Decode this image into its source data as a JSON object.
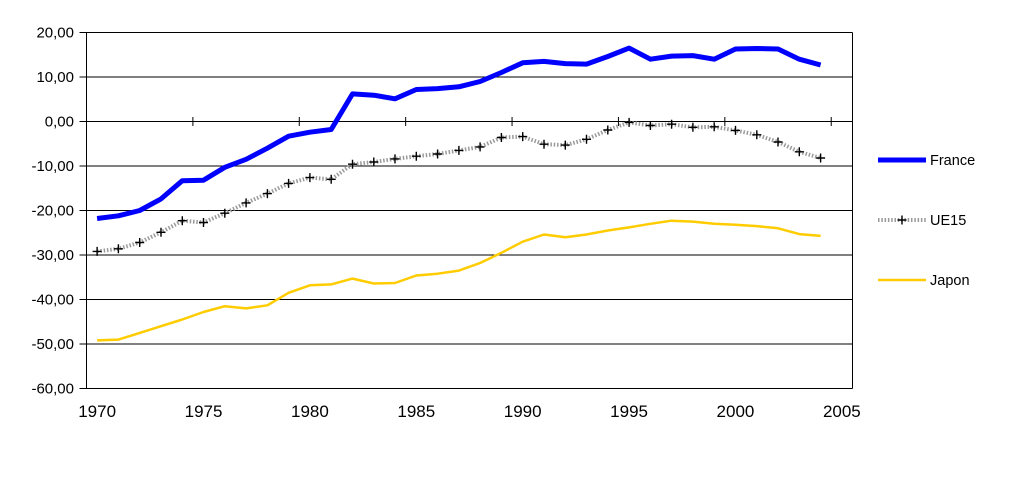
{
  "chart_data": {
    "type": "line",
    "title": "",
    "xlabel": "",
    "ylabel": "",
    "ylim": [
      -60,
      20
    ],
    "grid": "horizontal",
    "legend_position": "right",
    "background": "#FFFFFF",
    "axis_color": "#000000",
    "years": [
      1970,
      1971,
      1972,
      1973,
      1974,
      1975,
      1976,
      1977,
      1978,
      1979,
      1980,
      1981,
      1982,
      1983,
      1984,
      1985,
      1986,
      1987,
      1988,
      1989,
      1990,
      1991,
      1992,
      1993,
      1994,
      1995,
      1996,
      1997,
      1998,
      1999,
      2000,
      2001,
      2002,
      2003,
      2004
    ],
    "x_tick_labels": [
      "1970",
      "1975",
      "1980",
      "1985",
      "1990",
      "1995",
      "2000",
      "2005"
    ],
    "y_tick_values": [
      20,
      10,
      0,
      -10,
      -20,
      -30,
      -40,
      -50,
      -60
    ],
    "y_tick_labels": [
      "20,00",
      "10,00",
      "0,00",
      "-10,00",
      "-20,00",
      "-30,00",
      "-40,00",
      "-50,00",
      "-60,00"
    ],
    "series": [
      {
        "name": "France",
        "color": "#0000FF",
        "line_width": 5,
        "line_style": "solid",
        "marker": "none",
        "values": [
          -21.8,
          -21.2,
          -20.0,
          -17.4,
          -13.3,
          -13.2,
          -10.3,
          -8.5,
          -6.0,
          -3.3,
          -2.4,
          -1.8,
          6.2,
          5.9,
          5.1,
          7.2,
          7.4,
          7.8,
          9.0,
          11.0,
          13.2,
          13.5,
          13.0,
          12.9,
          14.6,
          16.5,
          14.0,
          14.7,
          14.8,
          14.0,
          16.3,
          16.4,
          16.3,
          14.0,
          12.7
        ]
      },
      {
        "name": "UE15",
        "color": "#9A9A9A",
        "marker_color": "#000000",
        "line_width": 4,
        "line_style": "dotted",
        "marker": "plus",
        "values": [
          -29.2,
          -28.6,
          -27.2,
          -24.9,
          -22.3,
          -22.7,
          -20.6,
          -18.3,
          -16.2,
          -13.9,
          -12.6,
          -13.0,
          -9.6,
          -9.1,
          -8.4,
          -7.8,
          -7.3,
          -6.5,
          -5.7,
          -3.6,
          -3.4,
          -5.1,
          -5.3,
          -4.0,
          -1.9,
          -0.2,
          -0.9,
          -0.6,
          -1.3,
          -1.2,
          -2.0,
          -3.0,
          -4.6,
          -6.8,
          -8.2
        ]
      },
      {
        "name": "Japon",
        "color": "#FFCC00",
        "line_width": 2.5,
        "line_style": "solid",
        "marker": "none",
        "values": [
          -49.2,
          -49.0,
          -47.5,
          -46.0,
          -44.5,
          -42.8,
          -41.5,
          -42.0,
          -41.3,
          -38.5,
          -36.8,
          -36.6,
          -35.3,
          -36.4,
          -36.3,
          -34.6,
          -34.2,
          -33.5,
          -31.8,
          -29.5,
          -27.0,
          -25.4,
          -26.0,
          -25.4,
          -24.5,
          -23.8,
          -23.0,
          -22.3,
          -22.5,
          -23.0,
          -23.2,
          -23.5,
          -24.0,
          -25.3,
          -25.7
        ]
      }
    ]
  }
}
